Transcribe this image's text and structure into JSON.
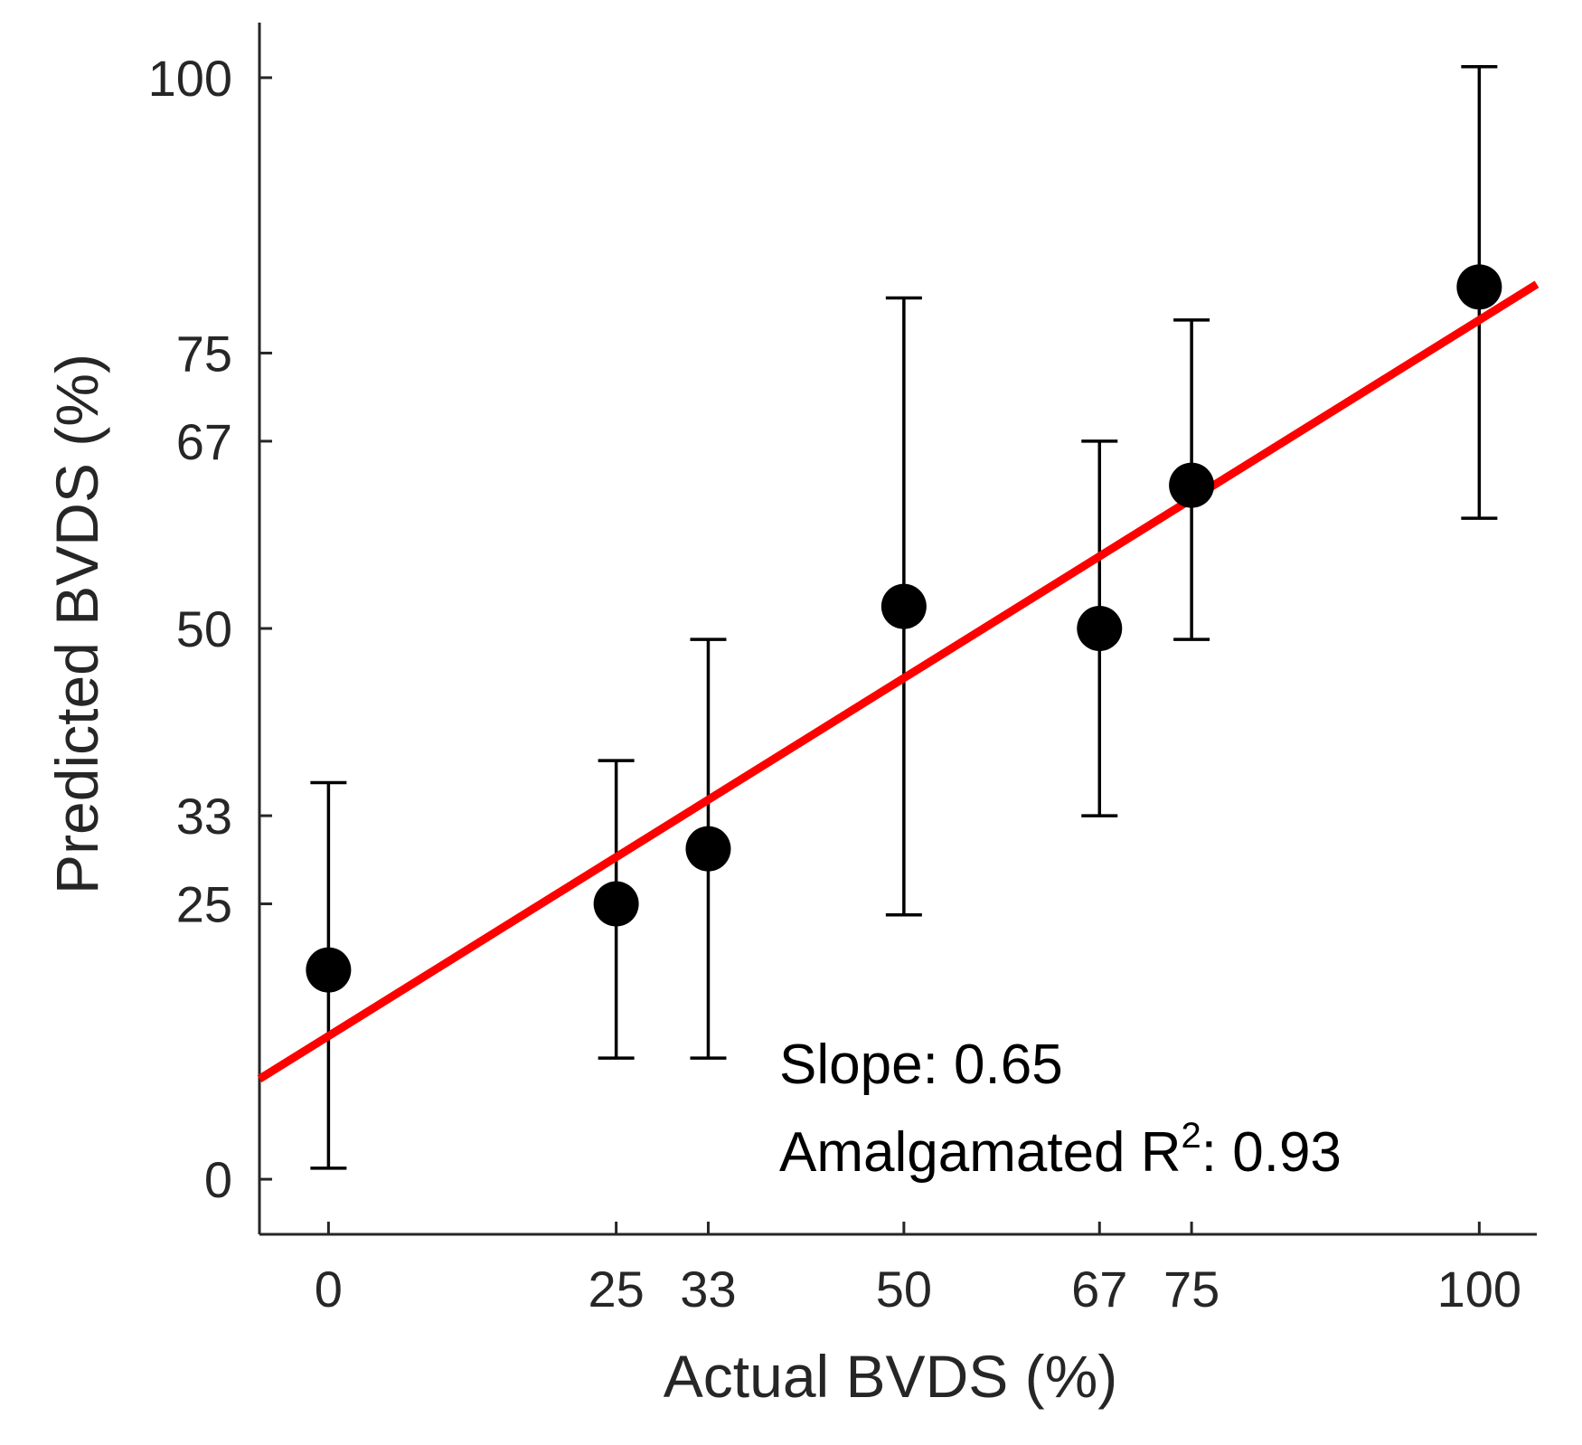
{
  "chart_data": {
    "type": "scatter",
    "xlabel": "Actual BVDS (%)",
    "ylabel": "Predicted BVDS (%)",
    "xlim": [
      -6,
      105
    ],
    "ylim": [
      -5,
      105
    ],
    "xticks": [
      0,
      25,
      33,
      50,
      67,
      75,
      100
    ],
    "yticks": [
      0,
      25,
      33,
      50,
      67,
      75,
      100
    ],
    "points": [
      {
        "x": 0,
        "y": 19,
        "ylow": 1,
        "yhigh": 36
      },
      {
        "x": 25,
        "y": 25,
        "ylow": 11,
        "yhigh": 38
      },
      {
        "x": 33,
        "y": 30,
        "ylow": 11,
        "yhigh": 49
      },
      {
        "x": 50,
        "y": 52,
        "ylow": 24,
        "yhigh": 80
      },
      {
        "x": 67,
        "y": 50,
        "ylow": 33,
        "yhigh": 67
      },
      {
        "x": 75,
        "y": 63,
        "ylow": 49,
        "yhigh": 78
      },
      {
        "x": 100,
        "y": 81,
        "ylow": 60,
        "yhigh": 101
      }
    ],
    "fit": {
      "slope": 0.65,
      "intercept": 13,
      "color": "#ff0000"
    },
    "marker_color": "#000000",
    "annotation": {
      "slope_label": "Slope: 0.65",
      "r2_prefix": "Amalgamated R",
      "r2_sup": "2",
      "r2_suffix": ": 0.93"
    }
  }
}
